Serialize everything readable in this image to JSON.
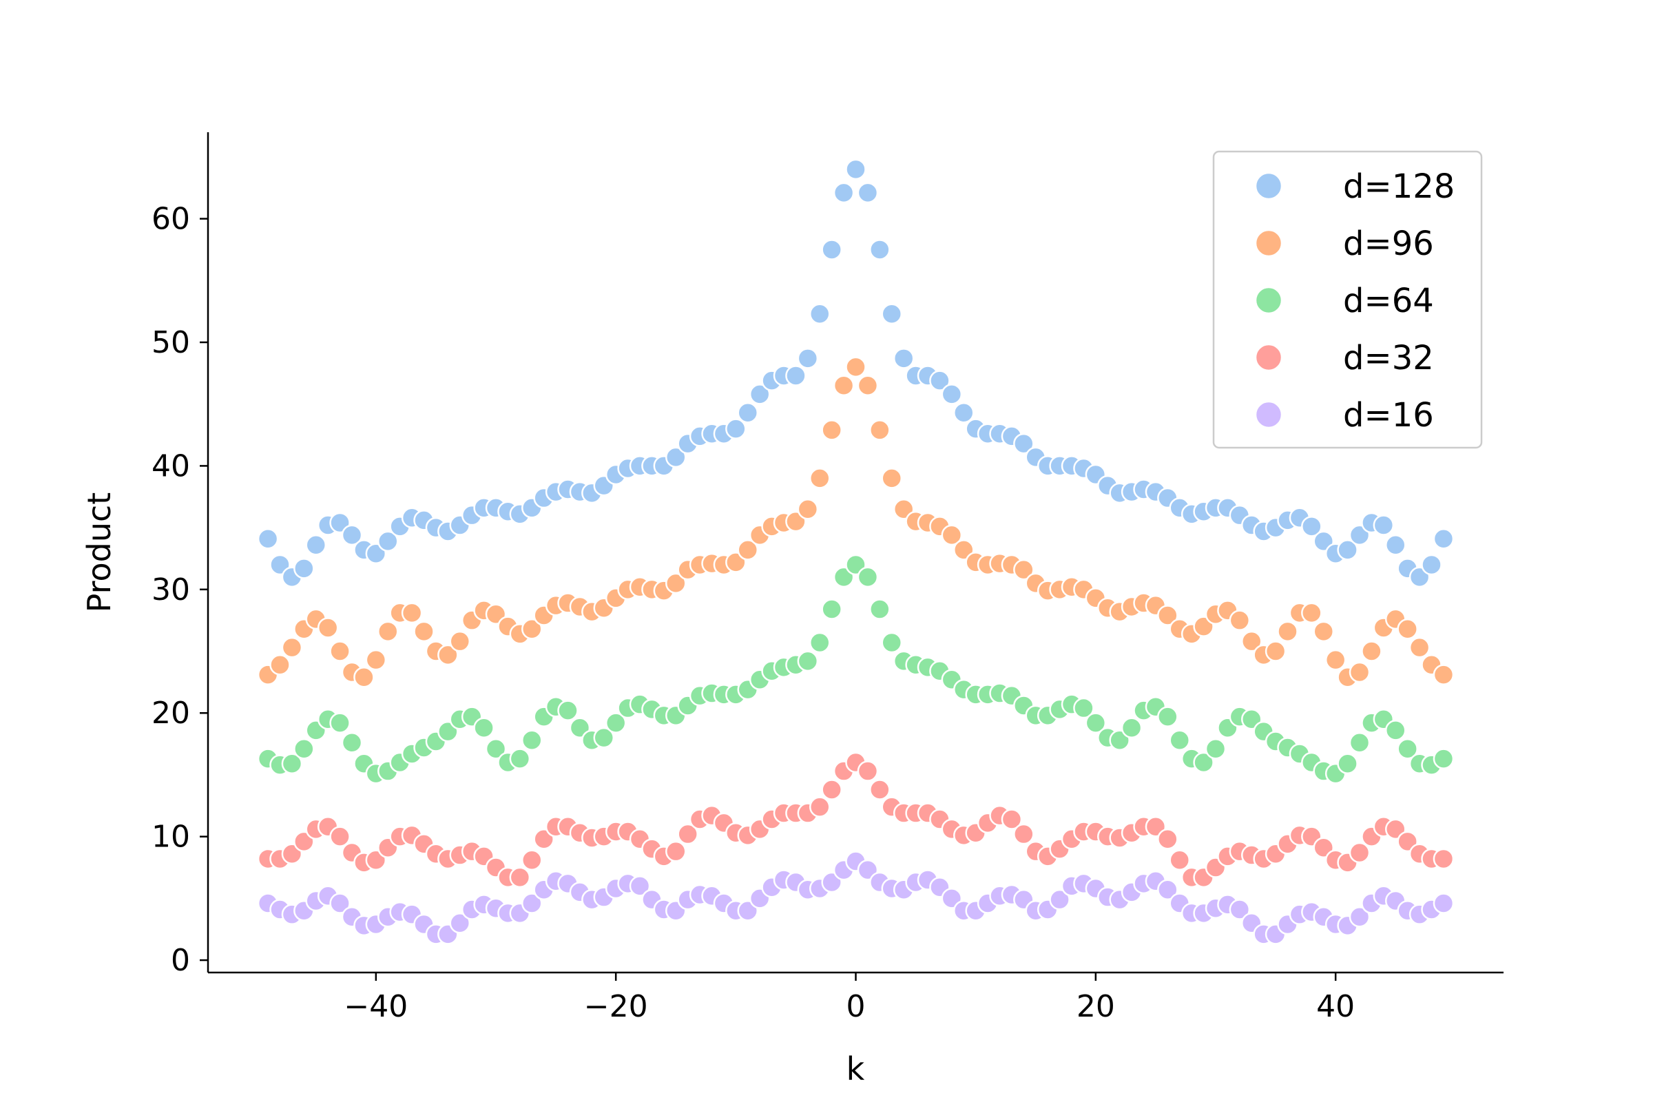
{
  "chart_data": {
    "type": "scatter",
    "title": "",
    "xlabel": "k",
    "ylabel": "Product",
    "xlim": [
      -54,
      54
    ],
    "ylim": [
      -1,
      67
    ],
    "xticks": [
      -40,
      -20,
      0,
      20,
      40
    ],
    "xtick_labels": [
      "−40",
      "−20",
      "0",
      "20",
      "40"
    ],
    "yticks": [
      0,
      10,
      20,
      30,
      40,
      50,
      60
    ],
    "ytick_labels": [
      "0",
      "10",
      "20",
      "30",
      "40",
      "50",
      "60"
    ],
    "grid": false,
    "legend_position": "top-right",
    "x": [
      -49,
      -48,
      -47,
      -46,
      -45,
      -44,
      -43,
      -42,
      -41,
      -40,
      -39,
      -38,
      -37,
      -36,
      -35,
      -34,
      -33,
      -32,
      -31,
      -30,
      -29,
      -28,
      -27,
      -26,
      -25,
      -24,
      -23,
      -22,
      -21,
      -20,
      -19,
      -18,
      -17,
      -16,
      -15,
      -14,
      -13,
      -12,
      -11,
      -10,
      -9,
      -8,
      -7,
      -6,
      -5,
      -4,
      -3,
      -2,
      -1,
      0,
      1,
      2,
      3,
      4,
      5,
      6,
      7,
      8,
      9,
      10,
      11,
      12,
      13,
      14,
      15,
      16,
      17,
      18,
      19,
      20,
      21,
      22,
      23,
      24,
      25,
      26,
      27,
      28,
      29,
      30,
      31,
      32,
      33,
      34,
      35,
      36,
      37,
      38,
      39,
      40,
      41,
      42,
      43,
      44,
      45,
      46,
      47,
      48,
      49
    ],
    "series": [
      {
        "name": "d=128",
        "color": "#a1c9f4",
        "values": [
          34.1,
          32.0,
          31.0,
          31.7,
          33.6,
          35.2,
          35.4,
          34.4,
          33.2,
          32.9,
          33.9,
          35.1,
          35.8,
          35.6,
          35.0,
          34.7,
          35.2,
          36.0,
          36.6,
          36.6,
          36.3,
          36.1,
          36.6,
          37.4,
          37.9,
          38.1,
          37.9,
          37.8,
          38.4,
          39.3,
          39.8,
          40.0,
          40.0,
          40.0,
          40.7,
          41.8,
          42.4,
          42.6,
          42.6,
          43.0,
          44.3,
          45.8,
          46.9,
          47.3,
          47.3,
          48.7,
          52.3,
          57.5,
          62.1,
          64.0,
          62.1,
          57.5,
          52.3,
          48.7,
          47.3,
          47.3,
          46.9,
          45.8,
          44.3,
          43.0,
          42.6,
          42.6,
          42.4,
          41.8,
          40.7,
          40.0,
          40.0,
          40.0,
          39.8,
          39.3,
          38.4,
          37.8,
          37.9,
          38.1,
          37.9,
          37.4,
          36.6,
          36.1,
          36.3,
          36.6,
          36.6,
          36.0,
          35.2,
          34.7,
          35.0,
          35.6,
          35.8,
          35.1,
          33.9,
          32.9,
          33.2,
          34.4,
          35.4,
          35.2,
          33.6,
          31.7,
          31.0,
          32.0,
          34.1
        ]
      },
      {
        "name": "d=96",
        "color": "#ffb482",
        "values": [
          23.1,
          23.9,
          25.3,
          26.8,
          27.6,
          26.9,
          25.0,
          23.3,
          22.9,
          24.3,
          26.6,
          28.1,
          28.1,
          26.6,
          25.0,
          24.7,
          25.8,
          27.5,
          28.3,
          28.0,
          27.0,
          26.4,
          26.8,
          27.9,
          28.7,
          28.9,
          28.6,
          28.2,
          28.5,
          29.3,
          30.0,
          30.2,
          30.0,
          29.9,
          30.5,
          31.6,
          32.0,
          32.1,
          32.0,
          32.2,
          33.2,
          34.4,
          35.1,
          35.4,
          35.5,
          36.5,
          39.0,
          42.9,
          46.5,
          48.0,
          46.5,
          42.9,
          39.0,
          36.5,
          35.5,
          35.4,
          35.1,
          34.4,
          33.2,
          32.2,
          32.0,
          32.1,
          32.0,
          31.6,
          30.5,
          29.9,
          30.0,
          30.2,
          30.0,
          29.3,
          28.5,
          28.2,
          28.6,
          28.9,
          28.7,
          27.9,
          26.8,
          26.4,
          27.0,
          28.0,
          28.3,
          27.5,
          25.8,
          24.7,
          25.0,
          26.6,
          28.1,
          28.1,
          26.6,
          24.3,
          22.9,
          23.3,
          25.0,
          26.9,
          27.6,
          26.8,
          25.3,
          23.9,
          23.1
        ]
      },
      {
        "name": "d=64",
        "color": "#8de5a1",
        "values": [
          16.3,
          15.8,
          15.9,
          17.1,
          18.6,
          19.5,
          19.2,
          17.6,
          15.9,
          15.1,
          15.3,
          16.0,
          16.7,
          17.2,
          17.7,
          18.5,
          19.5,
          19.7,
          18.8,
          17.1,
          16.0,
          16.3,
          17.8,
          19.7,
          20.5,
          20.2,
          18.8,
          17.8,
          18.0,
          19.2,
          20.4,
          20.7,
          20.3,
          19.8,
          19.8,
          20.6,
          21.4,
          21.6,
          21.5,
          21.5,
          21.9,
          22.7,
          23.4,
          23.7,
          23.9,
          24.2,
          25.7,
          28.4,
          31.0,
          32.0,
          31.0,
          28.4,
          25.7,
          24.2,
          23.9,
          23.7,
          23.4,
          22.7,
          21.9,
          21.5,
          21.5,
          21.6,
          21.4,
          20.6,
          19.8,
          19.8,
          20.3,
          20.7,
          20.4,
          19.2,
          18.0,
          17.8,
          18.8,
          20.2,
          20.5,
          19.7,
          17.8,
          16.3,
          16.0,
          17.1,
          18.8,
          19.7,
          19.5,
          18.5,
          17.7,
          17.2,
          16.7,
          16.0,
          15.3,
          15.1,
          15.9,
          17.6,
          19.2,
          19.5,
          18.6,
          17.1,
          15.9,
          15.8,
          16.3
        ]
      },
      {
        "name": "d=32",
        "color": "#ff9f9b",
        "values": [
          8.2,
          8.2,
          8.6,
          9.6,
          10.6,
          10.8,
          10.0,
          8.7,
          7.9,
          8.1,
          9.1,
          10.0,
          10.1,
          9.4,
          8.6,
          8.2,
          8.5,
          8.8,
          8.4,
          7.5,
          6.7,
          6.7,
          8.1,
          9.8,
          10.8,
          10.8,
          10.3,
          9.9,
          10.0,
          10.4,
          10.4,
          9.8,
          9.0,
          8.4,
          8.8,
          10.2,
          11.4,
          11.7,
          11.1,
          10.3,
          10.1,
          10.6,
          11.4,
          11.9,
          11.9,
          11.9,
          12.4,
          13.8,
          15.3,
          16.0,
          15.3,
          13.8,
          12.4,
          11.9,
          11.9,
          11.9,
          11.4,
          10.6,
          10.1,
          10.3,
          11.1,
          11.7,
          11.4,
          10.2,
          8.8,
          8.4,
          9.0,
          9.8,
          10.4,
          10.4,
          10.0,
          9.9,
          10.3,
          10.8,
          10.8,
          9.8,
          8.1,
          6.7,
          6.7,
          7.5,
          8.4,
          8.8,
          8.5,
          8.2,
          8.6,
          9.4,
          10.1,
          10.0,
          9.1,
          8.1,
          7.9,
          8.7,
          10.0,
          10.8,
          10.6,
          9.6,
          8.6,
          8.2,
          8.2
        ]
      },
      {
        "name": "d=16",
        "color": "#d0bbff",
        "values": [
          4.6,
          4.1,
          3.7,
          4.0,
          4.8,
          5.2,
          4.6,
          3.5,
          2.8,
          2.9,
          3.5,
          3.9,
          3.7,
          2.9,
          2.1,
          2.1,
          3.0,
          4.1,
          4.5,
          4.2,
          3.8,
          3.8,
          4.6,
          5.7,
          6.4,
          6.2,
          5.5,
          4.9,
          5.1,
          5.8,
          6.2,
          6.0,
          4.9,
          4.1,
          4.0,
          4.9,
          5.3,
          5.2,
          4.6,
          4.0,
          4.0,
          5.0,
          5.9,
          6.5,
          6.3,
          5.7,
          5.8,
          6.3,
          7.3,
          8.0,
          7.3,
          6.3,
          5.8,
          5.7,
          6.3,
          6.5,
          5.9,
          5.0,
          4.0,
          4.0,
          4.6,
          5.2,
          5.3,
          4.9,
          4.0,
          4.1,
          4.9,
          6.0,
          6.2,
          5.8,
          5.1,
          4.9,
          5.5,
          6.2,
          6.4,
          5.7,
          4.6,
          3.8,
          3.8,
          4.2,
          4.5,
          4.1,
          3.0,
          2.1,
          2.1,
          2.9,
          3.7,
          3.9,
          3.5,
          2.9,
          2.8,
          3.5,
          4.6,
          5.2,
          4.8,
          4.0,
          3.7,
          4.1,
          4.6
        ]
      }
    ]
  }
}
